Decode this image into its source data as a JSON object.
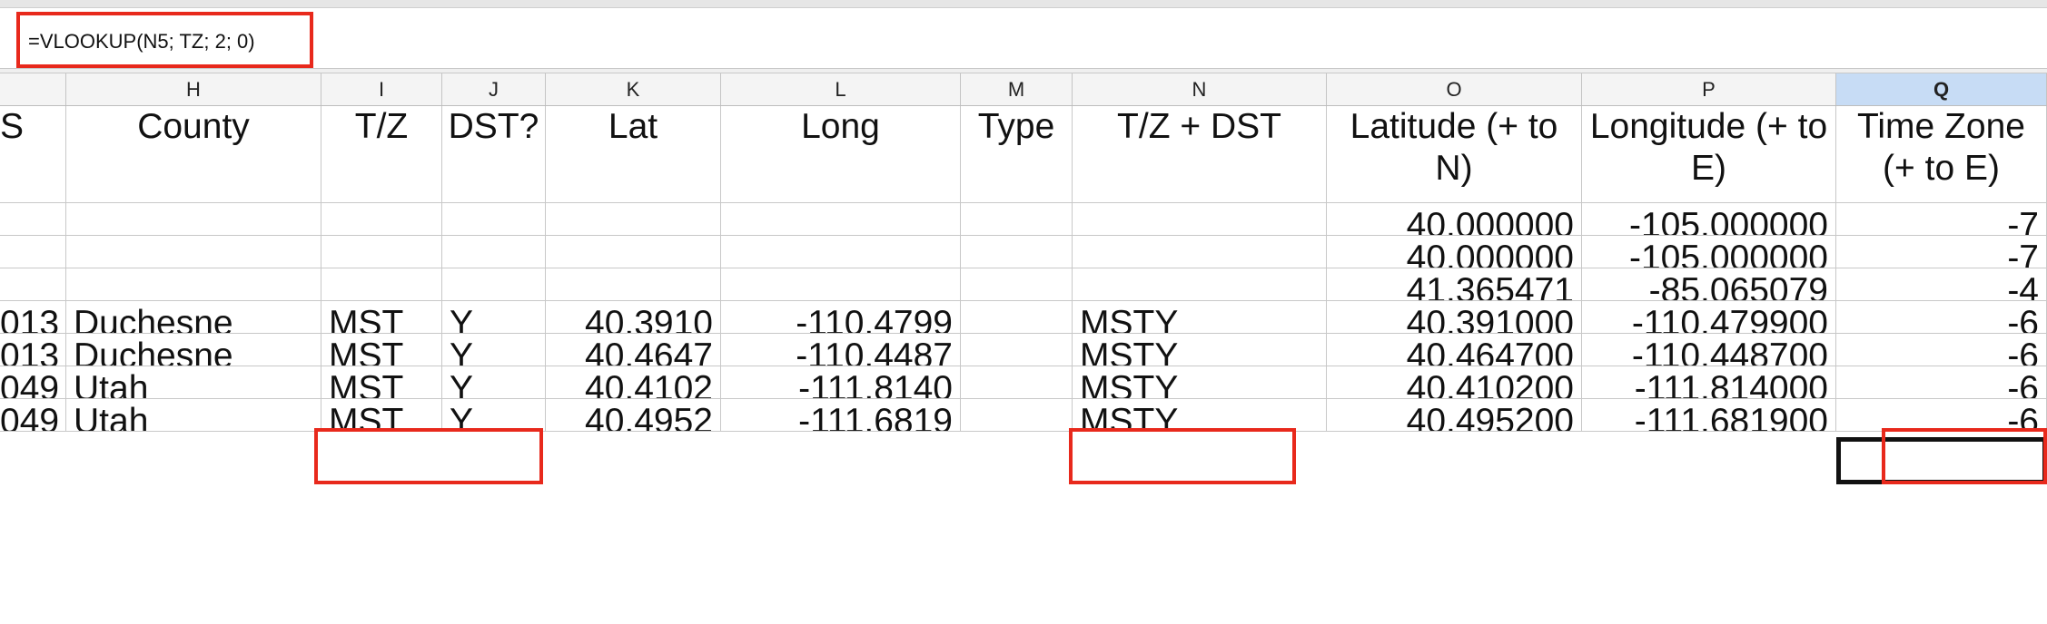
{
  "formula_bar": {
    "formula": "=VLOOKUP(N5; TZ; 2; 0)"
  },
  "columns": [
    "",
    "H",
    "I",
    "J",
    "K",
    "L",
    "M",
    "N",
    "O",
    "P",
    "Q"
  ],
  "selected_column": "Q",
  "header_row": [
    "S",
    "County",
    "T/Z",
    "DST?",
    "Lat",
    "Long",
    "Type",
    "T/Z + DST",
    "Latitude (+ to N)",
    "Longitude (+ to E)",
    "Time Zone (+ to E)"
  ],
  "rows": [
    [
      "",
      "",
      "",
      "",
      "",
      "",
      "",
      "",
      "40.000000",
      "-105.000000",
      "-7"
    ],
    [
      "",
      "",
      "",
      "",
      "",
      "",
      "",
      "",
      "40.000000",
      "-105.000000",
      "-7"
    ],
    [
      "",
      "",
      "",
      "",
      "",
      "",
      "",
      "",
      "41.365471",
      "-85.065079",
      "-4"
    ],
    [
      "013",
      "Duchesne",
      "MST",
      "Y",
      "40.3910",
      "-110.4799",
      "",
      "MSTY",
      "40.391000",
      "-110.479900",
      "-6"
    ],
    [
      "013",
      "Duchesne",
      "MST",
      "Y",
      "40.4647",
      "-110.4487",
      "",
      "MSTY",
      "40.464700",
      "-110.448700",
      "-6"
    ],
    [
      "049",
      "Utah",
      "MST",
      "Y",
      "40.4102",
      "-111.8140",
      "",
      "MSTY",
      "40.410200",
      "-111.814000",
      "-6"
    ],
    [
      "049",
      "Utah",
      "MST",
      "Y",
      "40.4952",
      "-111.6819",
      "",
      "MSTY",
      "40.495200",
      "-111.681900",
      "-6"
    ]
  ],
  "annotation_color": "#e8291c",
  "selection_color": "#c7dcf5"
}
